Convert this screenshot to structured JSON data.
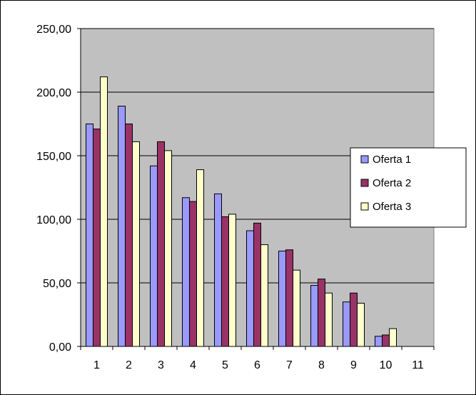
{
  "chart_data": {
    "type": "bar",
    "title": "",
    "xlabel": "",
    "ylabel": "",
    "categories": [
      "1",
      "2",
      "3",
      "4",
      "5",
      "6",
      "7",
      "8",
      "9",
      "10",
      "11"
    ],
    "ylim": [
      0,
      250
    ],
    "yticks": [
      0,
      50,
      100,
      150,
      200,
      250
    ],
    "ytick_labels": [
      "0,00",
      "50,00",
      "100,00",
      "150,00",
      "200,00",
      "250,00"
    ],
    "grid": "horizontal",
    "legend_position": "right",
    "plot_background": "#c0c0c0",
    "series": [
      {
        "name": "Oferta 1",
        "color": "#9999ff",
        "values": [
          175,
          189,
          142,
          117,
          120,
          91,
          75,
          48,
          35,
          8,
          null
        ]
      },
      {
        "name": "Oferta 2",
        "color": "#993366",
        "values": [
          171,
          175,
          161,
          114,
          102,
          97,
          76,
          53,
          42,
          9,
          null
        ]
      },
      {
        "name": "Oferta 3",
        "color": "#ffffcc",
        "values": [
          212,
          161,
          154,
          139,
          104,
          80,
          60,
          42,
          34,
          14,
          null
        ]
      }
    ]
  }
}
